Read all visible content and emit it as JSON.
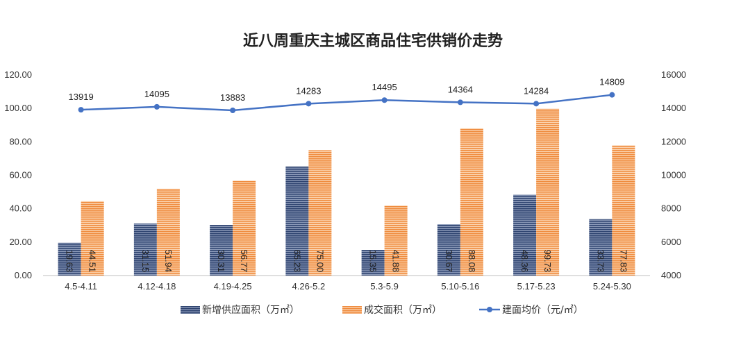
{
  "chart_data": {
    "type": "bar",
    "title": "近八周重庆主城区商品住宅供销价走势",
    "categories": [
      "4.5-4.11",
      "4.12-4.18",
      "4.19-4.25",
      "4.26-5.2",
      "5.3-5.9",
      "5.10-5.16",
      "5.17-5.23",
      "5.24-5.30"
    ],
    "series": [
      {
        "name": "新增供应面积（万㎡）",
        "kind": "bar",
        "axis": "left",
        "color": "#3f5380",
        "values": [
          19.63,
          31.15,
          30.31,
          65.23,
          15.35,
          30.67,
          48.36,
          33.73
        ],
        "labels": [
          "19.63",
          "31.15",
          "30.31",
          "65.23",
          "15.35",
          "30.67",
          "48.36",
          "33.73"
        ]
      },
      {
        "name": "成交面积（万㎡）",
        "kind": "bar",
        "axis": "left",
        "color": "#ee9650",
        "values": [
          44.51,
          51.94,
          56.77,
          75.0,
          41.88,
          88.08,
          99.73,
          77.83
        ],
        "labels": [
          "44.51",
          "51.94",
          "56.77",
          "75.00",
          "41.88",
          "88.08",
          "99.73",
          "77.83"
        ]
      },
      {
        "name": "建面均价（元/㎡）",
        "kind": "line",
        "axis": "right",
        "color": "#4472c4",
        "values": [
          13919,
          14095,
          13883,
          14283,
          14495,
          14364,
          14284,
          14809
        ],
        "labels": [
          "13919",
          "14095",
          "13883",
          "14283",
          "14495",
          "14364",
          "14284",
          "14809"
        ]
      }
    ],
    "y_left": {
      "ylim": [
        0,
        120
      ],
      "ticks": [
        "0.00",
        "20.00",
        "40.00",
        "60.00",
        "80.00",
        "100.00",
        "120.00"
      ]
    },
    "y_right": {
      "ylim": [
        4000,
        16000
      ],
      "ticks": [
        "4000",
        "6000",
        "8000",
        "10000",
        "12000",
        "14000",
        "16000"
      ]
    },
    "grid": false,
    "legend_position": "bottom"
  }
}
